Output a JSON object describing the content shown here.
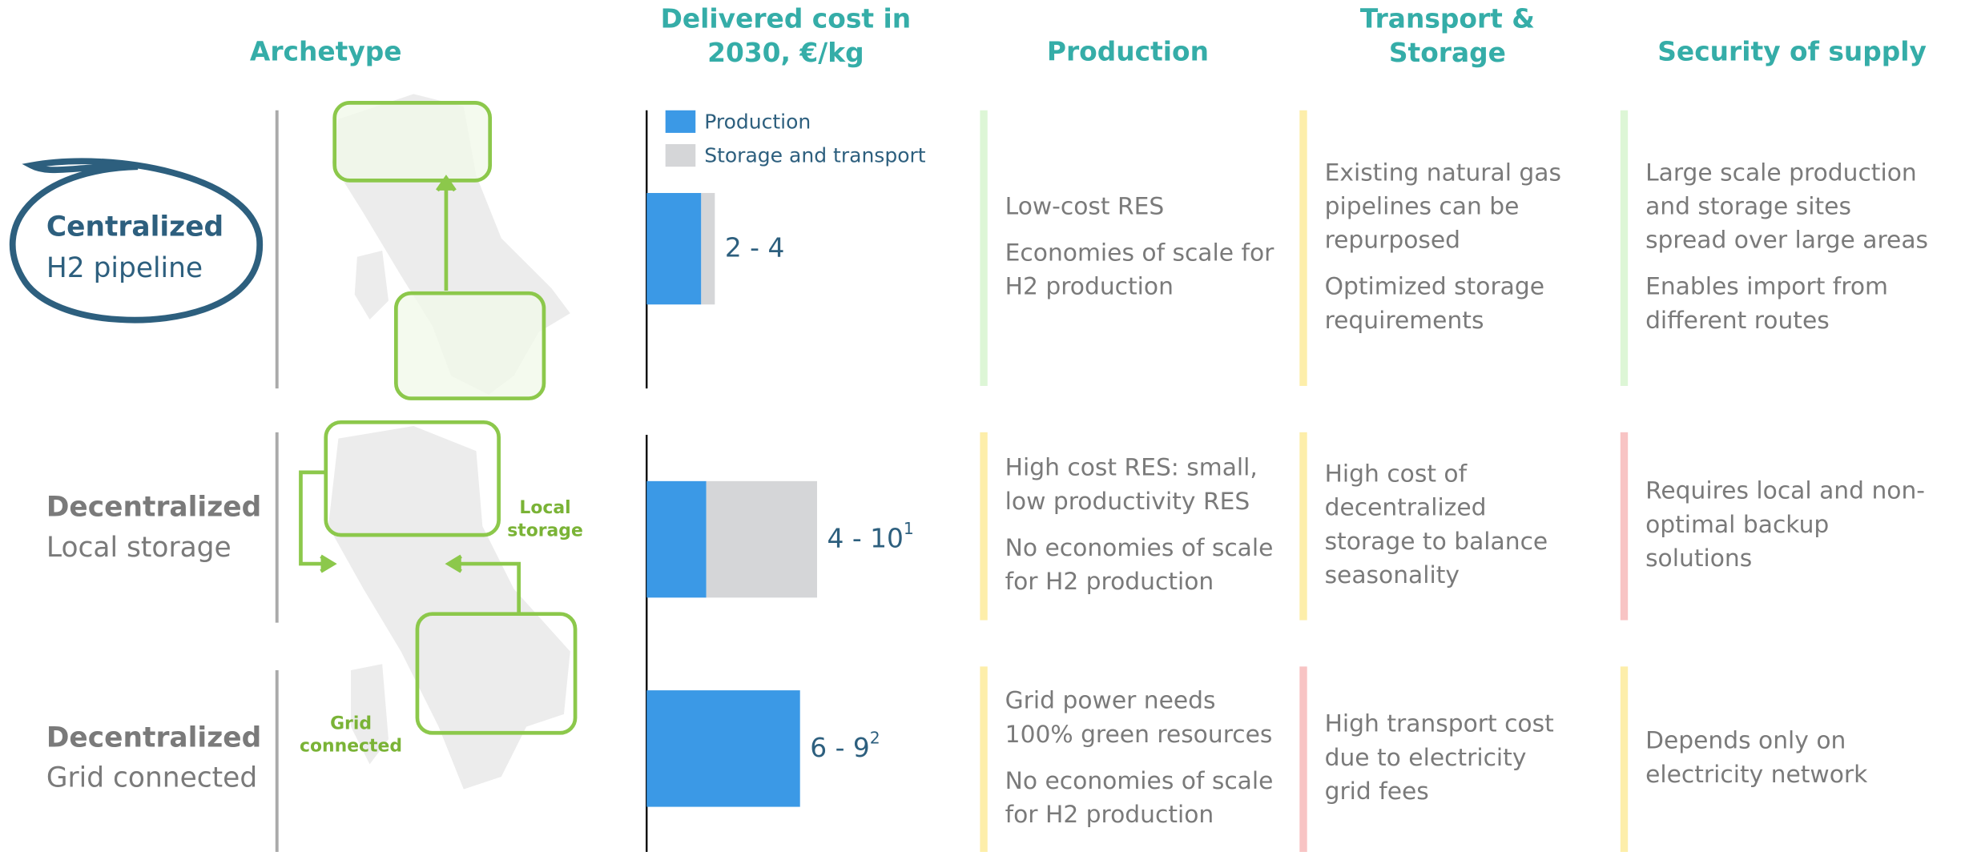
{
  "headers": [
    "Archetype",
    [
      "Delivered cost in",
      "2030, €/kg"
    ],
    "Production",
    [
      "Transport &",
      "Storage"
    ],
    "Security of supply"
  ],
  "cost_chart": {
    "type": "bar",
    "orientation": "horizontal",
    "stacked": true,
    "xlim": [
      0,
      10
    ],
    "series": [
      {
        "name": "Production",
        "color": "#3b99e6",
        "values": [
          3.2,
          3.5,
          9
        ]
      },
      {
        "name": "Storage and transport",
        "color": "#d5d6d8",
        "values": [
          0.8,
          6.5,
          0
        ]
      }
    ],
    "value_labels": [
      {
        "text": "2 - 4"
      },
      {
        "text": "4 - 10",
        "note": "1"
      },
      {
        "text": "6 - 9",
        "note": "2"
      }
    ]
  },
  "map_labels": [
    [
      "Local",
      "storage"
    ],
    [
      "Grid",
      "connected"
    ]
  ],
  "rows": [
    {
      "archetype": [
        "Centralized",
        "H2 pipeline"
      ],
      "cells": [
        {
          "color": "#ddf6d6",
          "paragraphs": [
            [
              "Low-cost RES"
            ],
            [
              "Economies of scale for",
              "H2 production"
            ]
          ]
        },
        {
          "color": "#fdeeaa",
          "paragraphs": [
            [
              "Existing natural gas",
              "pipelines can be",
              "repurposed"
            ],
            [
              "Optimized storage",
              "requirements"
            ]
          ]
        },
        {
          "color": "#ddf6d6",
          "paragraphs": [
            [
              "Large scale production",
              "and storage sites",
              "spread over large areas"
            ],
            [
              "Enables import from",
              "different routes"
            ]
          ]
        }
      ]
    },
    {
      "archetype": [
        "Decentralized",
        "Local storage"
      ],
      "cells": [
        {
          "color": "#fdeeaa",
          "paragraphs": [
            [
              "High cost RES: small,",
              "low productivity RES"
            ],
            [
              "No economies of scale",
              "for H2 production"
            ]
          ]
        },
        {
          "color": "#fdeeaa",
          "paragraphs": [
            [
              "High cost of",
              "decentralized",
              "storage to balance",
              "seasonality"
            ]
          ]
        },
        {
          "color": "#f8c4c4",
          "paragraphs": [
            [
              "Requires local and non-",
              "optimal backup",
              "solutions"
            ]
          ]
        }
      ]
    },
    {
      "archetype": [
        "Decentralized",
        "Grid connected"
      ],
      "cells": [
        {
          "color": "#fdeeaa",
          "paragraphs": [
            [
              "Grid power needs",
              "100% green resources"
            ],
            [
              "No economies of scale",
              "for H2 production"
            ]
          ]
        },
        {
          "color": "#f8c4c4",
          "paragraphs": [
            [
              "High transport cost",
              "due to electricity",
              "grid fees"
            ]
          ]
        },
        {
          "color": "#fdeeaa",
          "paragraphs": [
            [
              "Depends only on",
              "electricity network"
            ]
          ]
        }
      ]
    }
  ]
}
